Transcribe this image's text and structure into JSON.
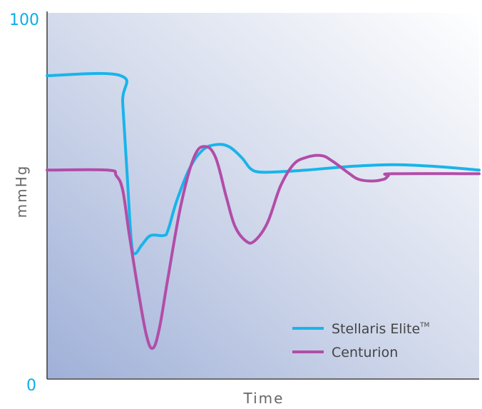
{
  "chart_data": {
    "type": "line",
    "title": "",
    "xlabel": "Time",
    "ylabel": "mmHg",
    "ylim": [
      0,
      100
    ],
    "y_ticks": [
      "0",
      "100"
    ],
    "x_ticks": [],
    "grid": false,
    "legend_position": "bottom-right",
    "colors": {
      "Stellaris Elite": "#19b4ea",
      "Centurion": "#b24da8"
    },
    "series": [
      {
        "name": "Stellaris Elite",
        "trademark": "TM",
        "color": "#19b4ea",
        "points": [
          [
            0,
            83.5
          ],
          [
            17,
            83.5
          ],
          [
            17.5,
            76
          ],
          [
            18.5,
            57
          ],
          [
            19.5,
            38
          ],
          [
            20.3,
            34.5
          ],
          [
            22,
            37
          ],
          [
            24,
            39.5
          ],
          [
            27,
            39.5
          ],
          [
            28,
            41
          ],
          [
            30,
            49
          ],
          [
            33,
            58
          ],
          [
            36,
            63
          ],
          [
            39,
            64.5
          ],
          [
            42,
            64
          ],
          [
            45,
            61
          ],
          [
            47,
            58
          ],
          [
            49,
            57
          ],
          [
            53,
            57
          ],
          [
            60,
            57.5
          ],
          [
            70,
            58.5
          ],
          [
            80,
            59
          ],
          [
            90,
            58.5
          ],
          [
            100,
            57.5
          ]
        ]
      },
      {
        "name": "Centurion",
        "color": "#b24da8",
        "points": [
          [
            0,
            57.5
          ],
          [
            14,
            57.5
          ],
          [
            16,
            56
          ],
          [
            17.5,
            52
          ],
          [
            19,
            40
          ],
          [
            21,
            25
          ],
          [
            23,
            12
          ],
          [
            24.5,
            8.5
          ],
          [
            26,
            14
          ],
          [
            28,
            28
          ],
          [
            31,
            48
          ],
          [
            34,
            61
          ],
          [
            36.5,
            64
          ],
          [
            39,
            61
          ],
          [
            41.5,
            50
          ],
          [
            43.5,
            42
          ],
          [
            46,
            38
          ],
          [
            48,
            38
          ],
          [
            51,
            43
          ],
          [
            54,
            53
          ],
          [
            57,
            59
          ],
          [
            60,
            61
          ],
          [
            63.5,
            61.5
          ],
          [
            66,
            60
          ],
          [
            70,
            56.5
          ],
          [
            72,
            55
          ],
          [
            75,
            54.5
          ],
          [
            78,
            55
          ],
          [
            79,
            56
          ],
          [
            80,
            56.5
          ],
          [
            100,
            56.5
          ]
        ]
      }
    ]
  }
}
